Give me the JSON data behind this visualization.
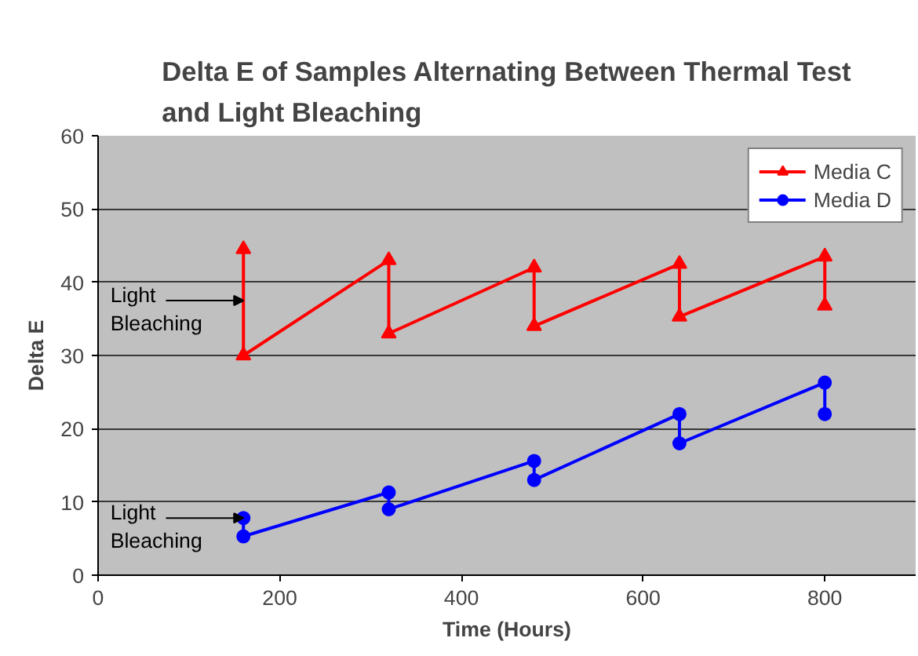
{
  "chart_data": {
    "type": "line",
    "title": "Delta E of Samples Alternating Between Thermal Test\nand Light Bleaching",
    "xlabel": "Time (Hours)",
    "ylabel": "Delta E",
    "series": [
      {
        "name": "Media C",
        "color": "#ff0000",
        "marker": "triangle",
        "x": [
          160,
          160,
          320,
          320,
          480,
          480,
          640,
          640,
          800,
          800
        ],
        "values": [
          44.5,
          30,
          43,
          33,
          42,
          34,
          42.5,
          35.3,
          43.5,
          36.8
        ]
      },
      {
        "name": "Media D",
        "color": "#0000ff",
        "marker": "circle",
        "x": [
          160,
          160,
          320,
          320,
          480,
          480,
          640,
          640,
          800,
          800
        ],
        "values": [
          7.8,
          5.3,
          11.3,
          9,
          15.6,
          13,
          22,
          18,
          26.3,
          22
        ]
      }
    ],
    "xlim": [
      0,
      900
    ],
    "xticks": [
      0,
      200,
      400,
      600,
      800
    ],
    "ylim": [
      0,
      60
    ],
    "yticks": [
      0,
      10,
      20,
      30,
      40,
      50,
      60
    ],
    "grid": "y",
    "legend": "top right",
    "line_style": "solid",
    "annotations": [
      {
        "text": "Light\nBleaching",
        "x": 160,
        "y": 37.5
      },
      {
        "text": "Light\nBleaching",
        "x": 160,
        "y": 7.8
      }
    ]
  }
}
